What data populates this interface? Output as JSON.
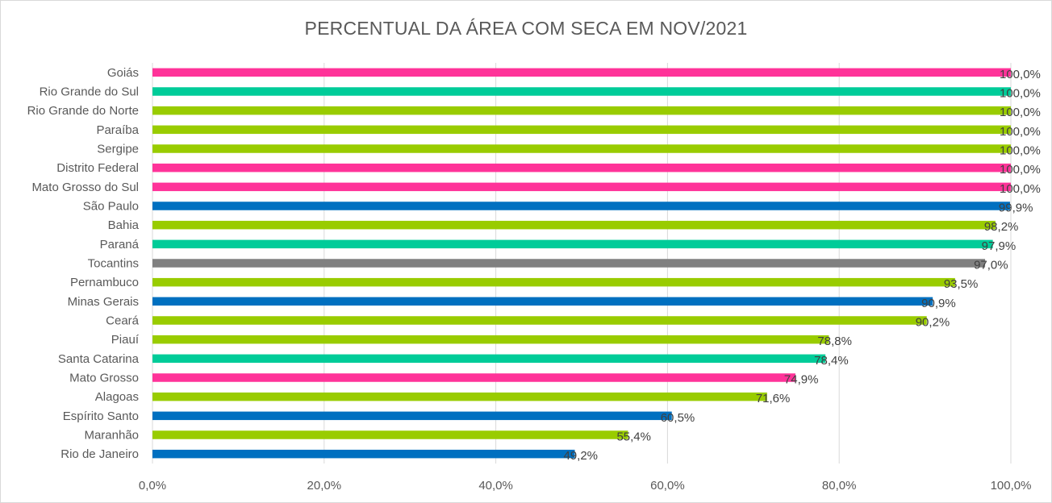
{
  "chart_data": {
    "type": "bar",
    "orientation": "horizontal",
    "title": "PERCENTUAL DA ÁREA COM SECA EM NOV/2021",
    "xlabel": "",
    "ylabel": "",
    "xlim": [
      0,
      100
    ],
    "grid": true,
    "legend": "none",
    "x_ticks": [
      "0,0%",
      "20,0%",
      "40,0%",
      "60,0%",
      "80,0%",
      "100,0%"
    ],
    "categories": [
      "Goiás",
      "Rio Grande do Sul",
      "Rio Grande do Norte",
      "Paraíba",
      "Sergipe",
      "Distrito Federal",
      "Mato Grosso do Sul",
      "São Paulo",
      "Bahia",
      "Paraná",
      "Tocantins",
      "Pernambuco",
      "Minas Gerais",
      "Ceará",
      "Piauí",
      "Santa Catarina",
      "Mato Grosso",
      "Alagoas",
      "Espírito Santo",
      "Maranhão",
      "Rio de Janeiro"
    ],
    "values": [
      100.0,
      100.0,
      100.0,
      100.0,
      100.0,
      100.0,
      100.0,
      99.9,
      98.2,
      97.9,
      97.0,
      93.5,
      90.9,
      90.2,
      78.8,
      78.4,
      74.9,
      71.6,
      60.5,
      55.4,
      49.2
    ],
    "data_labels": [
      "100,0%",
      "100,0%",
      "100,0%",
      "100,0%",
      "100,0%",
      "100,0%",
      "100,0%",
      "99,9%",
      "98,2%",
      "97,9%",
      "97,0%",
      "93,5%",
      "90,9%",
      "90,2%",
      "78,8%",
      "78,4%",
      "74,9%",
      "71,6%",
      "60,5%",
      "55,4%",
      "49,2%"
    ],
    "bar_colors": [
      "#FF3399",
      "#00CC99",
      "#99CC00",
      "#99CC00",
      "#99CC00",
      "#FF3399",
      "#FF3399",
      "#0070C0",
      "#99CC00",
      "#00CC99",
      "#808080",
      "#99CC00",
      "#0070C0",
      "#99CC00",
      "#99CC00",
      "#00CC99",
      "#FF3399",
      "#99CC00",
      "#0070C0",
      "#99CC00",
      "#0070C0"
    ]
  }
}
